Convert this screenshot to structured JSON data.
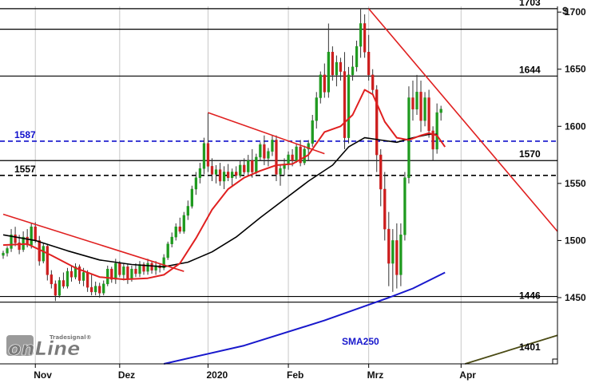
{
  "chart_data": {
    "type": "candlestick",
    "currency_symbol": "$",
    "y_axis": {
      "ticks": [
        1450,
        1500,
        1550,
        1600,
        1650,
        1700
      ],
      "range": [
        1392,
        1705
      ]
    },
    "x_axis": {
      "labels": [
        {
          "text": "Nov",
          "index": 8
        },
        {
          "text": "Dez",
          "index": 29
        },
        {
          "text": "2020",
          "index": 51
        },
        {
          "text": "Feb",
          "index": 71
        },
        {
          "text": "Mrz",
          "index": 91
        },
        {
          "text": "Apr",
          "index": 114
        }
      ],
      "index_range": [
        0,
        138
      ]
    },
    "candles": [
      [
        1487,
        1491,
        1484,
        1489
      ],
      [
        1489,
        1495,
        1486,
        1493
      ],
      [
        1493,
        1510,
        1490,
        1505
      ],
      [
        1505,
        1512,
        1495,
        1498
      ],
      [
        1498,
        1505,
        1488,
        1492
      ],
      [
        1492,
        1508,
        1490,
        1503
      ],
      [
        1503,
        1510,
        1494,
        1496
      ],
      [
        1496,
        1515,
        1493,
        1512
      ],
      [
        1512,
        1516,
        1498,
        1500
      ],
      [
        1500,
        1504,
        1478,
        1482
      ],
      [
        1482,
        1498,
        1480,
        1495
      ],
      [
        1495,
        1497,
        1465,
        1470
      ],
      [
        1470,
        1474,
        1458,
        1462
      ],
      [
        1462,
        1465,
        1447,
        1452
      ],
      [
        1452,
        1468,
        1450,
        1465
      ],
      [
        1465,
        1472,
        1458,
        1460
      ],
      [
        1460,
        1476,
        1458,
        1473
      ],
      [
        1473,
        1478,
        1464,
        1468
      ],
      [
        1468,
        1480,
        1466,
        1477
      ],
      [
        1477,
        1479,
        1462,
        1465
      ],
      [
        1465,
        1476,
        1460,
        1472
      ],
      [
        1472,
        1474,
        1455,
        1459
      ],
      [
        1459,
        1470,
        1452,
        1455
      ],
      [
        1455,
        1464,
        1452,
        1460
      ],
      [
        1460,
        1463,
        1450,
        1454
      ],
      [
        1454,
        1465,
        1452,
        1462
      ],
      [
        1462,
        1478,
        1460,
        1475
      ],
      [
        1475,
        1477,
        1463,
        1466
      ],
      [
        1466,
        1484,
        1462,
        1480
      ],
      [
        1480,
        1482,
        1468,
        1470
      ],
      [
        1470,
        1480,
        1465,
        1477
      ],
      [
        1477,
        1479,
        1462,
        1466
      ],
      [
        1466,
        1478,
        1464,
        1475
      ],
      [
        1475,
        1480,
        1468,
        1471
      ],
      [
        1471,
        1482,
        1468,
        1479
      ],
      [
        1479,
        1481,
        1470,
        1473
      ],
      [
        1473,
        1484,
        1470,
        1480
      ],
      [
        1480,
        1482,
        1471,
        1474
      ],
      [
        1474,
        1482,
        1470,
        1478
      ],
      [
        1478,
        1480,
        1472,
        1476
      ],
      [
        1476,
        1488,
        1474,
        1485
      ],
      [
        1485,
        1499,
        1483,
        1497
      ],
      [
        1497,
        1507,
        1494,
        1503
      ],
      [
        1503,
        1515,
        1500,
        1512
      ],
      [
        1512,
        1520,
        1506,
        1508
      ],
      [
        1508,
        1525,
        1506,
        1522
      ],
      [
        1522,
        1535,
        1518,
        1530
      ],
      [
        1530,
        1548,
        1528,
        1545
      ],
      [
        1545,
        1560,
        1540,
        1555
      ],
      [
        1555,
        1568,
        1550,
        1563
      ],
      [
        1563,
        1590,
        1558,
        1585
      ],
      [
        1585,
        1612,
        1560,
        1565
      ],
      [
        1565,
        1572,
        1552,
        1558
      ],
      [
        1558,
        1566,
        1550,
        1562
      ],
      [
        1562,
        1568,
        1548,
        1552
      ],
      [
        1552,
        1565,
        1545,
        1560
      ],
      [
        1560,
        1567,
        1552,
        1555
      ],
      [
        1555,
        1563,
        1548,
        1560
      ],
      [
        1560,
        1565,
        1554,
        1557
      ],
      [
        1557,
        1570,
        1555,
        1566
      ],
      [
        1566,
        1572,
        1558,
        1560
      ],
      [
        1560,
        1575,
        1557,
        1570
      ],
      [
        1570,
        1580,
        1555,
        1560
      ],
      [
        1560,
        1576,
        1558,
        1573
      ],
      [
        1573,
        1586,
        1570,
        1584
      ],
      [
        1584,
        1592,
        1566,
        1572
      ],
      [
        1572,
        1581,
        1565,
        1578
      ],
      [
        1578,
        1592,
        1574,
        1588
      ],
      [
        1588,
        1592,
        1552,
        1558
      ],
      [
        1558,
        1566,
        1548,
        1563
      ],
      [
        1563,
        1572,
        1557,
        1567
      ],
      [
        1567,
        1578,
        1562,
        1575
      ],
      [
        1575,
        1580,
        1565,
        1570
      ],
      [
        1570,
        1585,
        1568,
        1582
      ],
      [
        1582,
        1588,
        1565,
        1568
      ],
      [
        1568,
        1583,
        1566,
        1580
      ],
      [
        1580,
        1588,
        1570,
        1585
      ],
      [
        1585,
        1610,
        1582,
        1605
      ],
      [
        1605,
        1630,
        1598,
        1625
      ],
      [
        1625,
        1648,
        1620,
        1645
      ],
      [
        1645,
        1655,
        1625,
        1630
      ],
      [
        1630,
        1690,
        1625,
        1665
      ],
      [
        1665,
        1670,
        1640,
        1645
      ],
      [
        1645,
        1662,
        1635,
        1656
      ],
      [
        1656,
        1660,
        1640,
        1648
      ],
      [
        1648,
        1665,
        1580,
        1590
      ],
      [
        1590,
        1652,
        1585,
        1645
      ],
      [
        1645,
        1662,
        1640,
        1652
      ],
      [
        1652,
        1675,
        1648,
        1670
      ],
      [
        1670,
        1703,
        1660,
        1690
      ],
      [
        1690,
        1698,
        1660,
        1665
      ],
      [
        1665,
        1680,
        1640,
        1645
      ],
      [
        1645,
        1650,
        1628,
        1632
      ],
      [
        1632,
        1636,
        1560,
        1575
      ],
      [
        1575,
        1580,
        1530,
        1545
      ],
      [
        1545,
        1560,
        1500,
        1510
      ],
      [
        1510,
        1525,
        1460,
        1480
      ],
      [
        1480,
        1510,
        1455,
        1500
      ],
      [
        1500,
        1515,
        1458,
        1470
      ],
      [
        1470,
        1515,
        1460,
        1505
      ],
      [
        1505,
        1560,
        1500,
        1555
      ],
      [
        1555,
        1635,
        1550,
        1625
      ],
      [
        1625,
        1640,
        1605,
        1615
      ],
      [
        1615,
        1645,
        1610,
        1630
      ],
      [
        1630,
        1640,
        1595,
        1605
      ],
      [
        1605,
        1630,
        1600,
        1625
      ],
      [
        1625,
        1632,
        1590,
        1596
      ],
      [
        1596,
        1600,
        1570,
        1580
      ],
      [
        1580,
        1620,
        1576,
        1612
      ],
      [
        1612,
        1618,
        1605,
        1615
      ]
    ],
    "ma_red": [
      [
        0,
        1496
      ],
      [
        6,
        1497
      ],
      [
        12,
        1487
      ],
      [
        18,
        1476
      ],
      [
        24,
        1468
      ],
      [
        30,
        1466
      ],
      [
        36,
        1467
      ],
      [
        40,
        1470
      ],
      [
        44,
        1480
      ],
      [
        48,
        1502
      ],
      [
        52,
        1527
      ],
      [
        56,
        1545
      ],
      [
        60,
        1555
      ],
      [
        64,
        1561
      ],
      [
        68,
        1566
      ],
      [
        72,
        1567
      ],
      [
        76,
        1575
      ],
      [
        80,
        1595
      ],
      [
        84,
        1600
      ],
      [
        87,
        1610
      ],
      [
        90,
        1632
      ],
      [
        92,
        1628
      ],
      [
        95,
        1604
      ],
      [
        98,
        1590
      ],
      [
        101,
        1588
      ],
      [
        104,
        1592
      ],
      [
        106,
        1594
      ],
      [
        108,
        1592
      ],
      [
        110,
        1582
      ]
    ],
    "ma_black": [
      [
        0,
        1505
      ],
      [
        8,
        1500
      ],
      [
        16,
        1491
      ],
      [
        24,
        1483
      ],
      [
        32,
        1479
      ],
      [
        40,
        1477
      ],
      [
        46,
        1481
      ],
      [
        52,
        1490
      ],
      [
        58,
        1503
      ],
      [
        64,
        1520
      ],
      [
        70,
        1536
      ],
      [
        76,
        1552
      ],
      [
        82,
        1566
      ],
      [
        86,
        1582
      ],
      [
        90,
        1590
      ],
      [
        94,
        1588
      ],
      [
        98,
        1586
      ],
      [
        102,
        1590
      ],
      [
        106,
        1593
      ],
      [
        108,
        1593
      ]
    ],
    "sma250": {
      "label": "SMA250",
      "points": [
        [
          40,
          1392
        ],
        [
          60,
          1408
        ],
        [
          80,
          1430
        ],
        [
          96,
          1450
        ],
        [
          102,
          1458
        ],
        [
          110,
          1472
        ]
      ]
    },
    "trendlines": [
      {
        "color": "#e02020",
        "from": [
          0,
          1523
        ],
        "to": [
          45,
          1473
        ]
      },
      {
        "color": "#e02020",
        "from": [
          51,
          1612
        ],
        "to": [
          80,
          1576
        ]
      },
      {
        "color": "#e02020",
        "from": [
          91,
          1703
        ],
        "to": [
          138,
          1508
        ]
      },
      {
        "color": "#4a4a14",
        "from": [
          115,
          1392
        ],
        "to": [
          138,
          1417
        ]
      }
    ],
    "levels": [
      {
        "value": 1703,
        "label": "1703",
        "color": "#000000",
        "style": "solid",
        "label_side": "right"
      },
      {
        "value": 1685,
        "label": "",
        "color": "#000000",
        "style": "solid",
        "label_side": "right"
      },
      {
        "value": 1644,
        "label": "1644",
        "color": "#000000",
        "style": "solid",
        "label_side": "right"
      },
      {
        "value": 1587,
        "label": "1587",
        "color": "#1010cc",
        "style": "dashed",
        "label_side": "left"
      },
      {
        "value": 1570,
        "label": "1570",
        "color": "#000000",
        "style": "solid",
        "label_side": "right"
      },
      {
        "value": 1557,
        "label": "1557",
        "color": "#000000",
        "style": "dashed",
        "label_side": "left"
      },
      {
        "value": 1446,
        "label": "1446",
        "color": "#000000",
        "style": "solid",
        "label_side": "right"
      },
      {
        "value": 1451,
        "label": "",
        "color": "#000000",
        "style": "solid",
        "label_side": "right"
      },
      {
        "value": 1401,
        "label": "1401",
        "color": "#000000",
        "style": "none",
        "label_side": "right"
      }
    ],
    "colors": {
      "bull": "#1f9a1f",
      "bear": "#cc1f1f",
      "ma_red": "#e02020",
      "ma_black": "#000000",
      "sma250": "#1818cc",
      "grid": "#c8c8c8"
    }
  },
  "logo": {
    "text_main": "onLine",
    "text_small": "Tradesignal®"
  }
}
